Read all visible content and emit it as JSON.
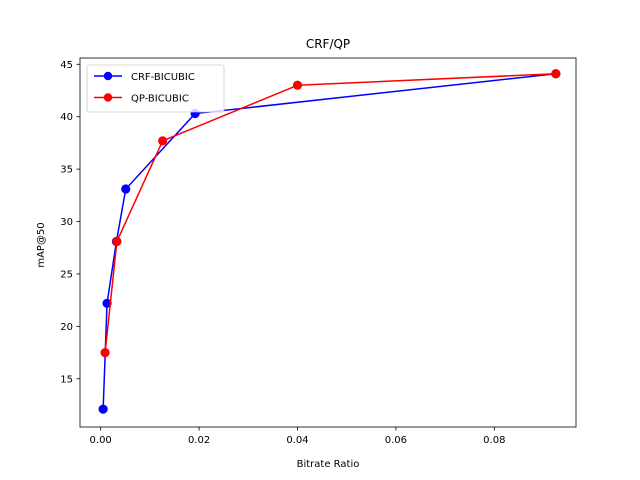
{
  "chart_data": {
    "type": "line",
    "title": "CRF/QP",
    "xlabel": "Bitrate Ratio",
    "ylabel": "mAP@50",
    "xlim": [
      -0.0042,
      0.0966
    ],
    "ylim": [
      10.4,
      45.6
    ],
    "xticks": [
      0.0,
      0.02,
      0.04,
      0.06,
      0.08
    ],
    "xtick_labels": [
      "0.00",
      "0.02",
      "0.04",
      "0.06",
      "0.08"
    ],
    "yticks": [
      15,
      20,
      25,
      30,
      35,
      40,
      45
    ],
    "ytick_labels": [
      "15",
      "20",
      "25",
      "30",
      "35",
      "40",
      "45"
    ],
    "grid": false,
    "legend_position": "top-left",
    "series": [
      {
        "name": "CRF-BICUBIC",
        "color": "#0000ff",
        "marker": "circle",
        "x": [
          0.0005,
          0.0013,
          0.0032,
          0.0051,
          0.0192,
          0.0925
        ],
        "y": [
          12.1,
          22.2,
          28.1,
          33.1,
          40.3,
          44.1
        ]
      },
      {
        "name": "QP-BICUBIC",
        "color": "#ff0000",
        "marker": "circle",
        "x": [
          0.0009,
          0.0033,
          0.0126,
          0.04,
          0.0925
        ],
        "y": [
          17.5,
          28.1,
          37.7,
          43.0,
          44.1
        ]
      }
    ]
  }
}
